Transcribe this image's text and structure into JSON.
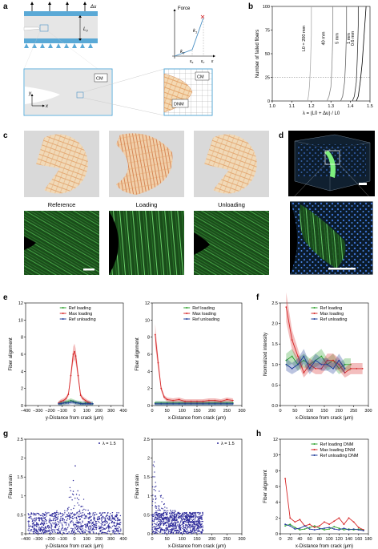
{
  "panels": {
    "a": {
      "letter": "a",
      "delta_u": "Δu",
      "L0": "L",
      "L0_sub": "0",
      "CM": "CM",
      "DNM": "DNM",
      "x_axis": "x",
      "y_axis": "y",
      "force_plot": {
        "ylabel": "Force",
        "k1": "k",
        "k1_sub": "1",
        "k0": "k",
        "k0_sub": "0",
        "eps_s": "ε",
        "eps_s_sub": "s",
        "eps_c": "ε",
        "eps_c_sub": "c",
        "eps": "ε"
      }
    },
    "c": {
      "letter": "c",
      "labels": [
        "Reference",
        "Loading",
        "Unloading"
      ]
    },
    "d": {
      "letter": "d"
    }
  },
  "chart_data": [
    {
      "id": "b",
      "type": "line",
      "xlabel": "λ = (L0 + Δu) / L0",
      "ylabel": "Number of failed fibers",
      "xlim": [
        1.0,
        1.5
      ],
      "ylim": [
        0,
        100
      ],
      "xticks": [
        "1.0",
        "1.1",
        "1.2",
        "1.3",
        "1.4",
        "1.5"
      ],
      "yticks": [
        "0",
        "25",
        "50",
        "75",
        "100"
      ],
      "reference_line": 25,
      "series": [
        {
          "name": "L0 = 200 mm",
          "x": [
            1.18,
            1.185,
            1.19,
            1.195,
            1.2,
            1.2
          ],
          "y": [
            0,
            5,
            15,
            35,
            70,
            100
          ]
        },
        {
          "name": "40 mm",
          "x": [
            1.28,
            1.29,
            1.3,
            1.305,
            1.31,
            1.31
          ],
          "y": [
            0,
            5,
            15,
            35,
            70,
            100
          ]
        },
        {
          "name": "5 mm",
          "x": [
            1.35,
            1.36,
            1.37,
            1.375,
            1.38,
            1.38
          ],
          "y": [
            0,
            5,
            20,
            40,
            75,
            100
          ]
        },
        {
          "name": "1 mm",
          "x": [
            1.41,
            1.42,
            1.43,
            1.435,
            1.44,
            1.44
          ],
          "y": [
            0,
            5,
            20,
            45,
            80,
            100
          ]
        },
        {
          "name": "0.6 mm",
          "x": [
            1.43,
            1.44,
            1.45,
            1.46,
            1.47,
            1.48
          ],
          "y": [
            0,
            5,
            20,
            40,
            70,
            100
          ]
        }
      ]
    },
    {
      "id": "e1",
      "type": "line",
      "xlabel": "y-Distance from crack (μm)",
      "ylabel": "Fiber alignment",
      "xlim": [
        -400,
        400
      ],
      "ylim": [
        0,
        12
      ],
      "xticks": [
        "−400",
        "−300",
        "−200",
        "−100",
        "0",
        "100",
        "200",
        "300",
        "400"
      ],
      "yticks": [
        "0",
        "2",
        "4",
        "6",
        "8",
        "10",
        "12"
      ],
      "series": [
        {
          "name": "Ref loading",
          "color": "#2ca02c",
          "x": [
            -130,
            -110,
            -90,
            -70,
            -50,
            -30,
            -10,
            10,
            30,
            50,
            70,
            90,
            110,
            130,
            150
          ],
          "y": [
            0.2,
            0.3,
            0.3,
            0.4,
            0.5,
            0.6,
            0.5,
            0.4,
            0.3,
            0.3,
            0.2,
            0.3,
            0.3,
            0.2,
            0.2
          ]
        },
        {
          "name": "Max loading",
          "color": "#d62728",
          "x": [
            -130,
            -110,
            -90,
            -70,
            -50,
            -30,
            -10,
            0,
            10,
            30,
            50,
            70,
            90,
            110,
            130
          ],
          "y": [
            0.3,
            0.5,
            0.6,
            0.8,
            1.3,
            3.5,
            6.0,
            6.3,
            5.8,
            3.5,
            1.2,
            0.8,
            0.6,
            0.4,
            0.3
          ]
        },
        {
          "name": "Ref unloading",
          "color": "#1f3b99",
          "x": [
            -130,
            -110,
            -90,
            -70,
            -50,
            -30,
            -10,
            10,
            30,
            50,
            70,
            90,
            110,
            130,
            150
          ],
          "y": [
            0.2,
            0.2,
            0.3,
            0.3,
            0.3,
            0.4,
            0.4,
            0.3,
            0.3,
            0.2,
            0.2,
            0.2,
            0.2,
            0.2,
            0.2
          ]
        }
      ]
    },
    {
      "id": "e2",
      "type": "line",
      "xlabel": "x-Distance from crack (μm)",
      "ylabel": "Fiber alignment",
      "xlim": [
        0,
        300
      ],
      "ylim": [
        0,
        12
      ],
      "xticks": [
        "0",
        "50",
        "100",
        "150",
        "200",
        "250",
        "300"
      ],
      "yticks": [
        "0",
        "2",
        "4",
        "6",
        "8",
        "10",
        "12"
      ],
      "series": [
        {
          "name": "Ref loading",
          "color": "#2ca02c",
          "x": [
            10,
            30,
            50,
            70,
            90,
            110,
            130,
            150,
            170,
            190,
            210,
            230,
            250,
            270
          ],
          "y": [
            0.3,
            0.3,
            0.3,
            0.3,
            0.3,
            0.3,
            0.3,
            0.3,
            0.3,
            0.3,
            0.3,
            0.3,
            0.3,
            0.3
          ]
        },
        {
          "name": "Max loading",
          "color": "#d62728",
          "x": [
            10,
            20,
            30,
            40,
            50,
            70,
            90,
            110,
            130,
            150,
            170,
            190,
            210,
            230,
            250,
            270
          ],
          "y": [
            8.3,
            5.0,
            2.0,
            1.0,
            0.7,
            0.6,
            0.7,
            0.5,
            0.5,
            0.5,
            0.5,
            0.6,
            0.6,
            0.5,
            0.7,
            0.6
          ]
        },
        {
          "name": "Ref unloading",
          "color": "#1f3b99",
          "x": [
            10,
            30,
            50,
            70,
            90,
            110,
            130,
            150,
            170,
            190,
            210,
            230,
            250,
            270
          ],
          "y": [
            0.2,
            0.2,
            0.2,
            0.2,
            0.2,
            0.2,
            0.2,
            0.2,
            0.2,
            0.2,
            0.2,
            0.2,
            0.2,
            0.2
          ]
        }
      ]
    },
    {
      "id": "f",
      "type": "line",
      "xlabel": "x-Distance from crack (μm)",
      "ylabel": "Normalized intensity",
      "xlim": [
        0,
        300
      ],
      "ylim": [
        0.0,
        2.5
      ],
      "xticks": [
        "0",
        "50",
        "100",
        "150",
        "200",
        "250",
        "300"
      ],
      "yticks": [
        "0.0",
        "0.5",
        "1.0",
        "1.5",
        "2.0",
        "2.5"
      ],
      "series": [
        {
          "name": "Ref loading",
          "color": "#2ca02c",
          "x": [
            20,
            40,
            60,
            80,
            100,
            120,
            140,
            160,
            180,
            200,
            220,
            240
          ],
          "y": [
            1.1,
            1.2,
            1.0,
            1.1,
            1.0,
            1.1,
            1.2,
            1.0,
            1.1,
            0.9,
            1.0,
            1.0
          ]
        },
        {
          "name": "Max loading",
          "color": "#d62728",
          "x": [
            20,
            40,
            60,
            80,
            100,
            120,
            140,
            160,
            180,
            200,
            220,
            240,
            260,
            280
          ],
          "y": [
            2.4,
            1.6,
            1.2,
            0.8,
            1.0,
            0.9,
            0.9,
            1.1,
            1.1,
            1.0,
            0.8,
            0.9,
            0.9,
            0.9
          ]
        },
        {
          "name": "Ref unloading",
          "color": "#1f3b99",
          "x": [
            20,
            40,
            60,
            80,
            100,
            120,
            140,
            160,
            180,
            200,
            220
          ],
          "y": [
            1.0,
            0.9,
            1.0,
            1.2,
            0.9,
            1.1,
            1.0,
            1.0,
            0.9,
            1.1,
            0.9
          ]
        }
      ]
    },
    {
      "id": "g1",
      "type": "scatter",
      "xlabel": "y-Distance from crack (μm)",
      "ylabel": "Fiber strain",
      "xlim": [
        -400,
        400
      ],
      "ylim": [
        0,
        2.5
      ],
      "xticks": [
        "−400",
        "−300",
        "−200",
        "−100",
        "0",
        "100",
        "200",
        "300",
        "400"
      ],
      "yticks": [
        "0",
        "0.5",
        "1",
        "1.5",
        "2",
        "2.5"
      ],
      "legend": "λ = 1.5",
      "dense_range": [
        -380,
        380
      ],
      "dense_level": 0.45,
      "peak_center": 0,
      "peak_max": 2.1
    },
    {
      "id": "g2",
      "type": "scatter",
      "xlabel": "x-Distance from crack (μm)",
      "ylabel": "Fiber strain",
      "xlim": [
        0,
        300
      ],
      "ylim": [
        0,
        2.5
      ],
      "xticks": [
        "0",
        "50",
        "100",
        "150",
        "200",
        "250",
        "300"
      ],
      "yticks": [
        "0",
        "0.5",
        "1",
        "1.5",
        "2",
        "2.5"
      ],
      "legend": "λ = 1.5",
      "dense_range": [
        0,
        170
      ],
      "dense_level": 0.45,
      "peak_center": 5,
      "peak_max": 2.2
    },
    {
      "id": "h",
      "type": "line",
      "xlabel": "x-Distance from crack (μm)",
      "ylabel": "Fiber alignment",
      "xlim": [
        0,
        180
      ],
      "ylim": [
        0,
        12
      ],
      "xticks": [
        "0",
        "20",
        "40",
        "60",
        "80",
        "100",
        "120",
        "140",
        "160",
        "180"
      ],
      "yticks": [
        "0",
        "2",
        "4",
        "6",
        "8",
        "10",
        "12"
      ],
      "series": [
        {
          "name": "Ref loading DNM",
          "color": "#2ca02c",
          "x": [
            10,
            20,
            30,
            40,
            50,
            60,
            70,
            80,
            90,
            100,
            110,
            120,
            130,
            140,
            150,
            160,
            170
          ],
          "y": [
            1.0,
            1.2,
            0.8,
            0.5,
            0.6,
            0.8,
            1.0,
            0.7,
            0.5,
            0.6,
            0.9,
            0.7,
            0.5,
            0.6,
            0.5,
            0.6,
            0.5
          ]
        },
        {
          "name": "Max loading DNM",
          "color": "#d62728",
          "x": [
            10,
            20,
            30,
            40,
            50,
            60,
            70,
            80,
            90,
            100,
            110,
            120,
            130,
            140,
            150,
            160,
            170
          ],
          "y": [
            7.0,
            2.0,
            1.5,
            1.8,
            1.0,
            1.2,
            0.8,
            1.0,
            1.5,
            1.2,
            1.6,
            2.0,
            1.2,
            2.0,
            1.5,
            0.8,
            0.5
          ]
        },
        {
          "name": "Ref unloading DNM",
          "color": "#1f3b99",
          "x": [
            10,
            20,
            30,
            40,
            50,
            60,
            70,
            80,
            90,
            100,
            110,
            120,
            130,
            140,
            150,
            160,
            170
          ],
          "y": [
            1.2,
            1.0,
            0.6,
            0.7,
            1.0,
            0.6,
            0.5,
            0.6,
            0.7,
            0.8,
            0.6,
            0.5,
            0.7,
            0.5,
            0.6,
            0.5,
            0.4
          ]
        }
      ]
    }
  ]
}
